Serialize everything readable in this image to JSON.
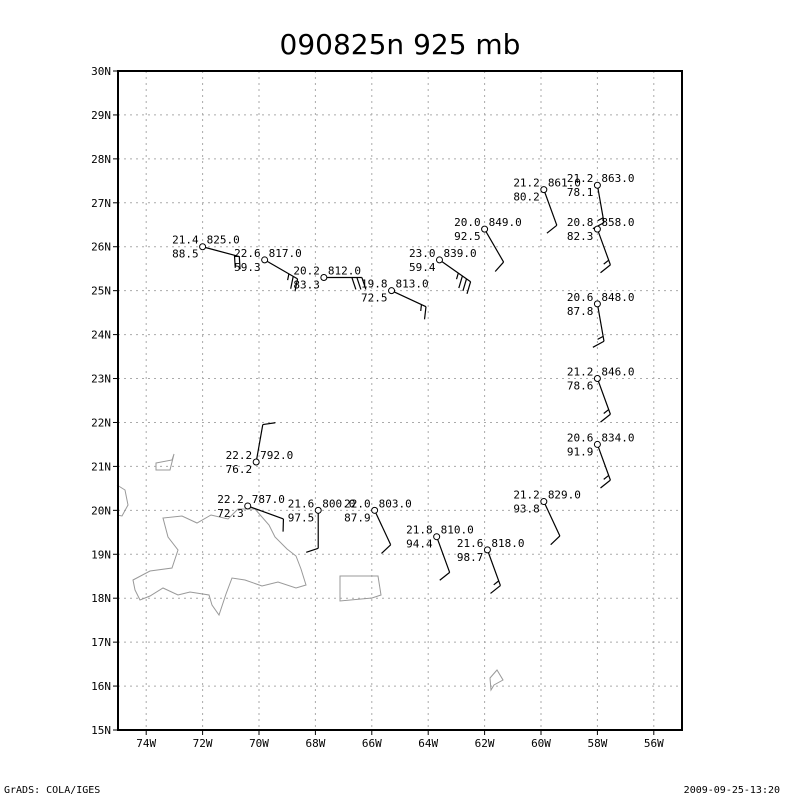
{
  "title": "090825n 925 mb",
  "footer": {
    "left": "GrADS: COLA/IGES",
    "right": "2009-09-25-13:20"
  },
  "axes": {
    "lon_range": [
      -75,
      -55
    ],
    "lat_range": [
      15,
      30
    ],
    "x_tick_labels": [
      {
        "lon": -74,
        "label": "74W"
      },
      {
        "lon": -72,
        "label": "72W"
      },
      {
        "lon": -70,
        "label": "70W"
      },
      {
        "lon": -68,
        "label": "68W"
      },
      {
        "lon": -66,
        "label": "66W"
      },
      {
        "lon": -64,
        "label": "64W"
      },
      {
        "lon": -62,
        "label": "62W"
      },
      {
        "lon": -60,
        "label": "60W"
      },
      {
        "lon": -58,
        "label": "58W"
      },
      {
        "lon": -56,
        "label": "56W"
      }
    ],
    "y_tick_labels": [
      {
        "lat": 15,
        "label": "15N"
      },
      {
        "lat": 16,
        "label": "16N"
      },
      {
        "lat": 17,
        "label": "17N"
      },
      {
        "lat": 18,
        "label": "18N"
      },
      {
        "lat": 19,
        "label": "19N"
      },
      {
        "lat": 20,
        "label": "20N"
      },
      {
        "lat": 21,
        "label": "21N"
      },
      {
        "lat": 22,
        "label": "22N"
      },
      {
        "lat": 23,
        "label": "23N"
      },
      {
        "lat": 24,
        "label": "24N"
      },
      {
        "lat": 25,
        "label": "25N"
      },
      {
        "lat": 26,
        "label": "26N"
      },
      {
        "lat": 27,
        "label": "27N"
      },
      {
        "lat": 28,
        "label": "28N"
      },
      {
        "lat": 29,
        "label": "29N"
      },
      {
        "lat": 30,
        "label": "30N"
      }
    ],
    "grid": true
  },
  "observations": [
    {
      "lon": -72.0,
      "lat": 26.0,
      "temp": "21.4",
      "rh": "88.5",
      "pres": "825.0",
      "barb_dir": 105,
      "barb_speed": 20
    },
    {
      "lon": -69.8,
      "lat": 25.7,
      "temp": "22.6",
      "rh": "59.3",
      "pres": "817.0",
      "barb_dir": 120,
      "barb_speed": 25
    },
    {
      "lon": -67.7,
      "lat": 25.3,
      "temp": "20.2",
      "rh": "83.3",
      "pres": "812.0",
      "barb_dir": 90,
      "barb_speed": 30
    },
    {
      "lon": -65.3,
      "lat": 25.0,
      "temp": "19.8",
      "rh": "72.5",
      "pres": "813.0",
      "barb_dir": 115,
      "barb_speed": 15
    },
    {
      "lon": -63.6,
      "lat": 25.7,
      "temp": "23.0",
      "rh": "59.4",
      "pres": "839.0",
      "barb_dir": 125,
      "barb_speed": 35
    },
    {
      "lon": -62.0,
      "lat": 26.4,
      "temp": "20.0",
      "rh": "92.5",
      "pres": "849.0",
      "barb_dir": 150,
      "barb_speed": 10
    },
    {
      "lon": -59.9,
      "lat": 27.3,
      "temp": "21.2",
      "rh": "80.2",
      "pres": "861.0",
      "barb_dir": 160,
      "barb_speed": 10
    },
    {
      "lon": -58.0,
      "lat": 27.4,
      "temp": "21.2",
      "rh": "78.1",
      "pres": "863.0",
      "barb_dir": 170,
      "barb_speed": 15
    },
    {
      "lon": -58.0,
      "lat": 26.4,
      "temp": "20.8",
      "rh": "82.3",
      "pres": "858.0",
      "barb_dir": 160,
      "barb_speed": 15
    },
    {
      "lon": -58.0,
      "lat": 24.7,
      "temp": "20.6",
      "rh": "87.8",
      "pres": "848.0",
      "barb_dir": 170,
      "barb_speed": 15
    },
    {
      "lon": -58.0,
      "lat": 23.0,
      "temp": "21.2",
      "rh": "78.6",
      "pres": "846.0",
      "barb_dir": 160,
      "barb_speed": 15
    },
    {
      "lon": -58.0,
      "lat": 21.5,
      "temp": "20.6",
      "rh": "91.9",
      "pres": "834.0",
      "barb_dir": 160,
      "barb_speed": 15
    },
    {
      "lon": -70.1,
      "lat": 21.1,
      "temp": "22.2",
      "rh": "76.2",
      "pres": "792.0",
      "barb_dir": 10,
      "barb_speed": 10
    },
    {
      "lon": -70.4,
      "lat": 20.1,
      "temp": "22.2",
      "rh": "72.3",
      "pres": "787.0",
      "barb_dir": 110,
      "barb_speed": 10
    },
    {
      "lon": -67.9,
      "lat": 20.0,
      "temp": "21.6",
      "rh": "97.5",
      "pres": "800.0",
      "barb_dir": 180,
      "barb_speed": 10
    },
    {
      "lon": -65.9,
      "lat": 20.0,
      "temp": "22.0",
      "rh": "87.9",
      "pres": "803.0",
      "barb_dir": 155,
      "barb_speed": 10
    },
    {
      "lon": -63.7,
      "lat": 19.4,
      "temp": "21.8",
      "rh": "94.4",
      "pres": "810.0",
      "barb_dir": 160,
      "barb_speed": 10
    },
    {
      "lon": -61.9,
      "lat": 19.1,
      "temp": "21.6",
      "rh": "98.7",
      "pres": "818.0",
      "barb_dir": 160,
      "barb_speed": 15
    },
    {
      "lon": -59.9,
      "lat": 20.2,
      "temp": "21.2",
      "rh": "93.8",
      "pres": "829.0",
      "barb_dir": 155,
      "barb_speed": 10
    }
  ]
}
